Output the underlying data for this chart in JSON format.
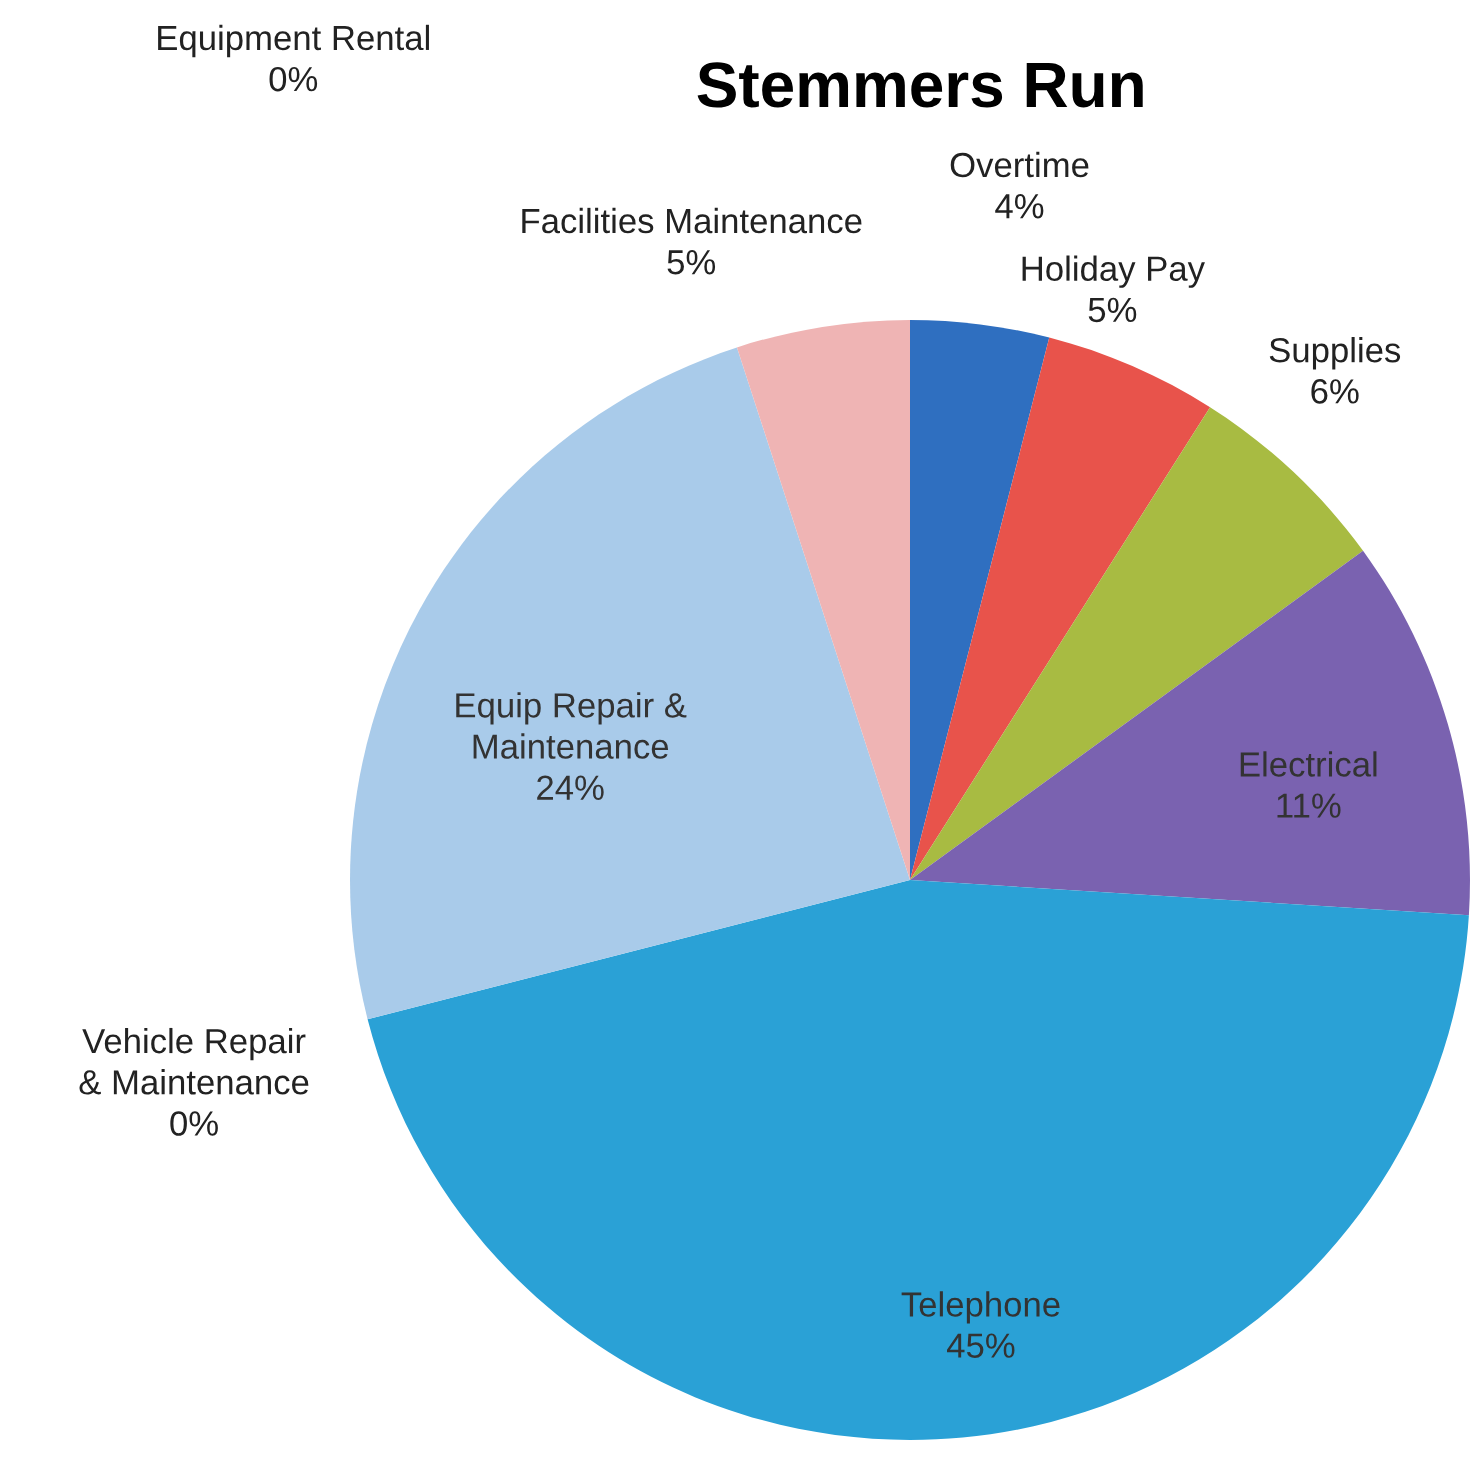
{
  "chart_data": {
    "type": "pie",
    "title": "Stemmers Run",
    "categories": [
      "Overtime",
      "Holiday Pay",
      "Supplies",
      "Electrical",
      "Telephone",
      "Vehicle Repair\n& Maintenance",
      "Equip Repair &\nMaintenance",
      "Facilities Maintenance",
      "Equipment Rental"
    ],
    "values": [
      4,
      5,
      6,
      11,
      45,
      0,
      24,
      5,
      0
    ],
    "value_labels": [
      "4%",
      "5%",
      "6%",
      "11%",
      "45%",
      "0%",
      "24%",
      "5%",
      "0%"
    ],
    "colors": [
      "#2f6fc0",
      "#e8534b",
      "#a8bb42",
      "#7a62b0",
      "#2aa1d6",
      "#9dbfe6",
      "#a9cbea",
      "#efb4b4",
      "#bdbdbd"
    ],
    "legend": false
  }
}
